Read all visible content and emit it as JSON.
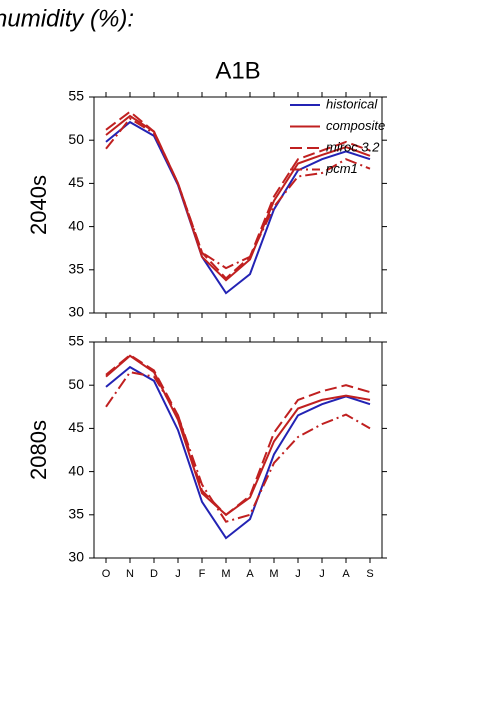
{
  "chart_data": [
    {
      "type": "line",
      "title": "humidity (%):",
      "subtitle": "A1B",
      "ylabel": "2040s",
      "ylim": [
        30,
        55
      ],
      "yticks": [
        30,
        35,
        40,
        45,
        50,
        55
      ],
      "legend": "upper right",
      "series": [
        {
          "name": "historical",
          "color": "#2323b4",
          "dash": "solid",
          "values": [
            49.8,
            52.1,
            50.5,
            44.8,
            36.5,
            32.3,
            34.5,
            42,
            46.5,
            47.8,
            48.7,
            47.8
          ]
        },
        {
          "name": "composite",
          "color": "#c02020",
          "dash": "solid",
          "values": [
            50.6,
            52.8,
            51,
            45,
            36.5,
            33.8,
            36.2,
            43,
            47.3,
            48.3,
            49.2,
            48.2
          ]
        },
        {
          "name": "miroc 3.2",
          "color": "#c02020",
          "dash": "dashed",
          "values": [
            51.2,
            53.3,
            51,
            45,
            37,
            34,
            36.5,
            43.5,
            47.8,
            48.8,
            49.8,
            48.8
          ]
        },
        {
          "name": "pcm1",
          "color": "#c02020",
          "dash": "dashdot",
          "values": [
            49,
            52.5,
            50.8,
            45,
            37,
            35.2,
            36.5,
            42.3,
            45.8,
            46.2,
            47.8,
            46.7
          ]
        }
      ]
    },
    {
      "type": "line",
      "ylabel": "2080s",
      "ylim": [
        30,
        55
      ],
      "yticks": [
        30,
        35,
        40,
        45,
        50,
        55
      ],
      "categories": [
        "O",
        "N",
        "D",
        "J",
        "F",
        "M",
        "A",
        "M",
        "J",
        "J",
        "A",
        "S"
      ],
      "series": [
        {
          "color": "#2323b4",
          "dash": "solid",
          "values": [
            49.8,
            52.1,
            50.5,
            44.8,
            36.5,
            32.3,
            34.5,
            42,
            46.5,
            47.8,
            48.7,
            47.8
          ]
        },
        {
          "color": "#c02020",
          "dash": "solid",
          "values": [
            51,
            53.4,
            51.5,
            46,
            37.5,
            35,
            37,
            43.5,
            47.3,
            48.3,
            48.8,
            48.3
          ]
        },
        {
          "color": "#c02020",
          "dash": "dashed",
          "values": [
            51.2,
            53.5,
            51.7,
            46.5,
            37.8,
            35,
            37.2,
            44.5,
            48.3,
            49.3,
            50,
            49.2
          ]
        },
        {
          "color": "#c02020",
          "dash": "dashdot",
          "values": [
            47.5,
            51.5,
            51,
            46.5,
            38.5,
            34.2,
            35,
            41,
            44,
            45.5,
            46.6,
            45
          ]
        }
      ]
    }
  ]
}
